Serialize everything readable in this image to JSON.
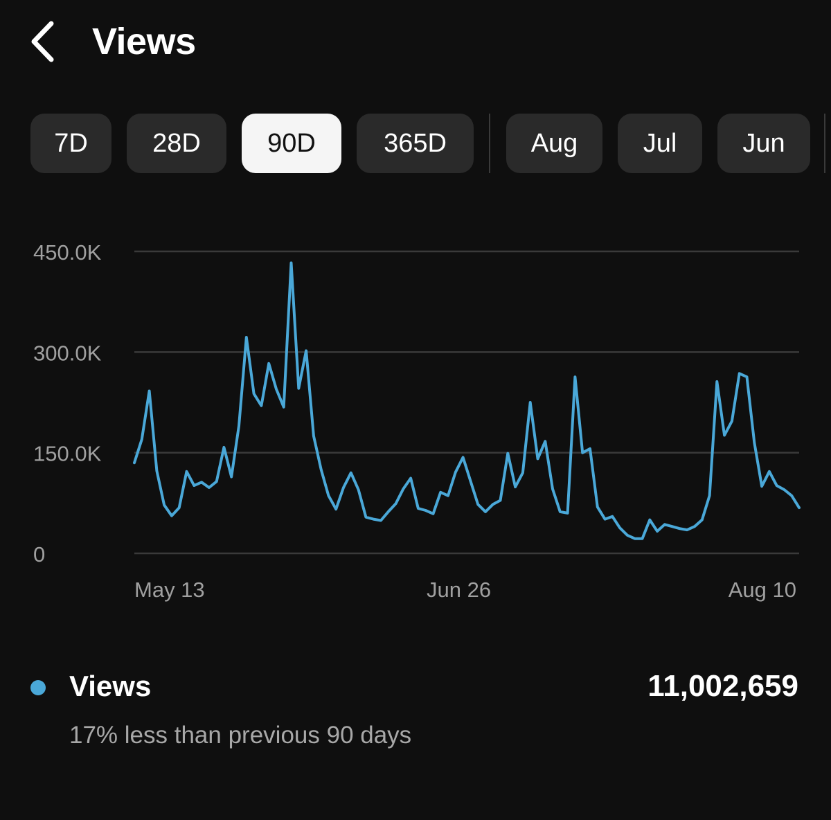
{
  "header": {
    "title": "Views",
    "back_icon": "chevron-left-icon"
  },
  "filters": {
    "items": [
      {
        "label": "7D",
        "active": false
      },
      {
        "label": "28D",
        "active": false
      },
      {
        "label": "90D",
        "active": true
      },
      {
        "label": "365D",
        "active": false
      },
      {
        "label": "Aug",
        "active": false
      },
      {
        "label": "Jul",
        "active": false
      },
      {
        "label": "Jun",
        "active": false
      }
    ]
  },
  "chart_data": {
    "type": "line",
    "x_ticks": [
      "May 13",
      "Jun 26",
      "Aug 10"
    ],
    "y_ticks": [
      "0",
      "150.0K",
      "300.0K",
      "450.0K"
    ],
    "ylim": [
      0,
      450000
    ],
    "grid": true,
    "line_color": "#4aa8d8",
    "grid_color": "#3a3a3a",
    "series": [
      {
        "values": [
          135000,
          170000,
          242000,
          123000,
          72000,
          56000,
          68000,
          122000,
          101000,
          106000,
          98000,
          107000,
          158000,
          114000,
          190000,
          322000,
          238000,
          220000,
          283000,
          245000,
          218000,
          433000,
          246000,
          302000,
          175000,
          125000,
          86000,
          66000,
          98000,
          120000,
          95000,
          54000,
          51000,
          49000,
          62000,
          74000,
          96000,
          112000,
          67000,
          64000,
          59000,
          91000,
          86000,
          121000,
          143000,
          108000,
          73000,
          62000,
          73000,
          79000,
          149000,
          99000,
          120000,
          225000,
          141000,
          167000,
          96000,
          62000,
          60000,
          263000,
          150000,
          156000,
          69000,
          51000,
          55000,
          38000,
          27000,
          22000,
          22000,
          50000,
          33000,
          43000,
          40000,
          37000,
          35000,
          40000,
          50000,
          86000,
          256000,
          176000,
          197000,
          268000,
          263000,
          165000,
          100000,
          122000,
          101000,
          95000,
          86000,
          68000
        ]
      }
    ]
  },
  "legend": {
    "color": "#4aa8d8",
    "label": "Views",
    "total": "11,002,659",
    "comparison": "17% less than previous 90 days"
  }
}
